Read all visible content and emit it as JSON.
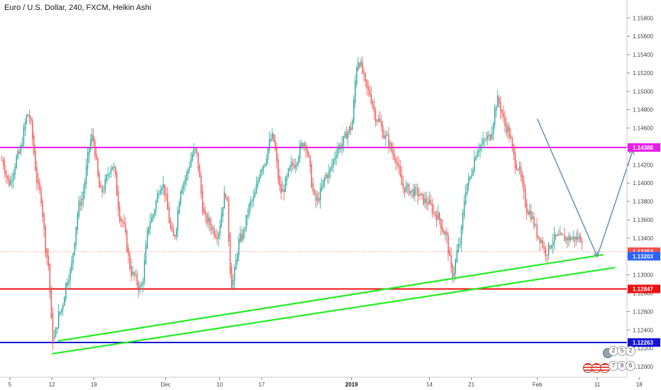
{
  "header": {
    "title": "Euro / U.S. Dollar, 240, FXCM, Heikin Ashi"
  },
  "chart_data": {
    "type": "candlestick",
    "symbol": "Euro / U.S. Dollar",
    "interval": "240",
    "source": "FXCM",
    "style": "Heikin Ashi",
    "y_range": [
      1.119,
      1.1598
    ],
    "y_ticks": [
      "1.15800",
      "1.15600",
      "1.15400",
      "1.15200",
      "1.15000",
      "1.14800",
      "1.14600",
      "1.14400",
      "1.14200",
      "1.14000",
      "1.13800",
      "1.13600",
      "1.13400",
      "1.13200",
      "1.13000",
      "1.12800",
      "1.12600",
      "1.12400",
      "1.12200",
      "1.12000"
    ],
    "x_ticks": [
      {
        "label": "5",
        "bold": false
      },
      {
        "label": "12",
        "bold": false
      },
      {
        "label": "19",
        "bold": false
      },
      {
        "label": "Dec",
        "bold": false
      },
      {
        "label": "10",
        "bold": false
      },
      {
        "label": "17",
        "bold": false
      },
      {
        "label": "2019",
        "bold": true
      },
      {
        "label": "14",
        "bold": false
      },
      {
        "label": "21",
        "bold": false
      },
      {
        "label": "Feb",
        "bold": false
      },
      {
        "label": "11",
        "bold": false
      },
      {
        "label": "18",
        "bold": false
      }
    ],
    "horizontal_levels": [
      {
        "price": 1.14388,
        "label": "1.14388",
        "color": "#e91ee9"
      },
      {
        "price": 1.12847,
        "label": "1.12847",
        "color": "#ee1111"
      },
      {
        "price": 1.12263,
        "label": "1.12263",
        "color": "#1414d8"
      }
    ],
    "current_price": {
      "price": 1.13253,
      "label": "1.13253",
      "color": "#ef5350"
    },
    "close_price": {
      "price": 1.13203,
      "label": "1.13203",
      "color": "#2962ff"
    },
    "trendlines": [
      {
        "color": "#22ee22",
        "from": [
          "Nov 13",
          1.1228
        ],
        "to": [
          "Feb 12",
          1.1322
        ]
      },
      {
        "color": "#22ee22",
        "from": [
          "Nov 12",
          1.1214
        ],
        "to": [
          "Feb 14",
          1.1308
        ]
      }
    ],
    "projection": {
      "color": "#6a8fb5",
      "segments": [
        [
          "Feb 1",
          1.147
        ],
        [
          "Feb 11",
          1.132
        ],
        [
          "Feb 17",
          1.1437
        ]
      ]
    },
    "up_color": "#26a69a",
    "down_color": "#ef5350",
    "path_knots": [
      [
        0.0,
        1.1425
      ],
      [
        0.012,
        1.14
      ],
      [
        0.028,
        1.143
      ],
      [
        0.045,
        1.1475
      ],
      [
        0.065,
        1.139
      ],
      [
        0.078,
        1.132
      ],
      [
        0.088,
        1.1228
      ],
      [
        0.1,
        1.126
      ],
      [
        0.115,
        1.13
      ],
      [
        0.135,
        1.138
      ],
      [
        0.155,
        1.145
      ],
      [
        0.17,
        1.139
      ],
      [
        0.19,
        1.142
      ],
      [
        0.205,
        1.136
      ],
      [
        0.225,
        1.13
      ],
      [
        0.238,
        1.1285
      ],
      [
        0.255,
        1.136
      ],
      [
        0.275,
        1.14
      ],
      [
        0.295,
        1.134
      ],
      [
        0.31,
        1.14
      ],
      [
        0.332,
        1.1435
      ],
      [
        0.35,
        1.136
      ],
      [
        0.37,
        1.1345
      ],
      [
        0.385,
        1.139
      ],
      [
        0.395,
        1.129
      ],
      [
        0.41,
        1.134
      ],
      [
        0.43,
        1.138
      ],
      [
        0.448,
        1.142
      ],
      [
        0.465,
        1.145
      ],
      [
        0.48,
        1.139
      ],
      [
        0.5,
        1.142
      ],
      [
        0.52,
        1.1445
      ],
      [
        0.54,
        1.138
      ],
      [
        0.56,
        1.141
      ],
      [
        0.58,
        1.144
      ],
      [
        0.6,
        1.146
      ],
      [
        0.612,
        1.1535
      ],
      [
        0.63,
        1.15
      ],
      [
        0.645,
        1.147
      ],
      [
        0.66,
        1.145
      ],
      [
        0.675,
        1.143
      ],
      [
        0.69,
        1.1395
      ],
      [
        0.71,
        1.139
      ],
      [
        0.73,
        1.138
      ],
      [
        0.748,
        1.1365
      ],
      [
        0.762,
        1.1345
      ],
      [
        0.775,
        1.13
      ],
      [
        0.785,
        1.133
      ],
      [
        0.8,
        1.14
      ],
      [
        0.82,
        1.144
      ],
      [
        0.838,
        1.145
      ],
      [
        0.852,
        1.149
      ],
      [
        0.868,
        1.146
      ],
      [
        0.885,
        1.142
      ],
      [
        0.905,
        1.137
      ],
      [
        0.925,
        1.134
      ],
      [
        0.935,
        1.1325
      ],
      [
        0.95,
        1.134
      ],
      [
        0.962,
        1.134
      ]
    ]
  },
  "event_badges": {
    "row1": [
      "2",
      "5",
      "2"
    ],
    "row2": [
      "7",
      "9",
      "6"
    ]
  }
}
